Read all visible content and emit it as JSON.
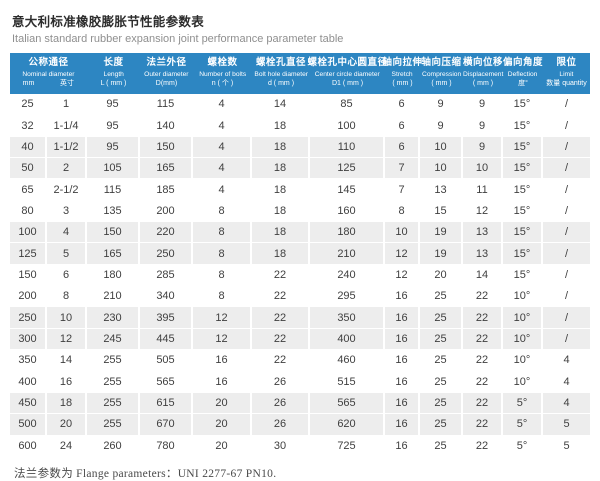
{
  "header": {
    "title": "意大利标准橡胶膨胀节性能参数表",
    "subtitle": "Italian standard rubber expansion joint performance parameter table"
  },
  "colors": {
    "header_bg": "#2d86c2",
    "row_stripe": "#ededed",
    "header_text": "#ffffff",
    "body_text": "#3f3f3f"
  },
  "table": {
    "columns": [
      {
        "zh": "公称通径",
        "en": "Nominal diameter",
        "sub": [
          "mm",
          "英寸"
        ],
        "span": 2
      },
      {
        "zh": "长度",
        "en": "Length",
        "sub": [
          "L ( mm )"
        ],
        "span": 1
      },
      {
        "zh": "法兰外径",
        "en": "Outer diameter",
        "sub": [
          "D(mm)"
        ],
        "span": 1
      },
      {
        "zh": "螺栓数",
        "en": "Number of bolts",
        "sub": [
          "n ( 个 )"
        ],
        "span": 1
      },
      {
        "zh": "螺栓孔直径",
        "en": "Bolt hole diameter",
        "sub": [
          "d ( mm )"
        ],
        "span": 1
      },
      {
        "zh": "螺栓孔中心圆直径",
        "en": "Center circle diameter",
        "sub": [
          "D1 ( mm )"
        ],
        "span": 1
      },
      {
        "zh": "轴向拉伸",
        "en": "Stretch",
        "sub": [
          "( mm )"
        ],
        "span": 1
      },
      {
        "zh": "轴向压缩",
        "en": "Compression",
        "sub": [
          "( mm )"
        ],
        "span": 1
      },
      {
        "zh": "横向位移",
        "en": "Displacement",
        "sub": [
          "( mm )"
        ],
        "span": 1
      },
      {
        "zh": "偏向角度",
        "en": "Deflection",
        "sub": [
          "度°"
        ],
        "span": 1
      },
      {
        "zh": "限位",
        "en": "Limit",
        "sub": [
          "数量 quantity"
        ],
        "span": 1
      }
    ],
    "rows": [
      [
        "25",
        "1",
        "95",
        "115",
        "4",
        "14",
        "85",
        "6",
        "9",
        "9",
        "15°",
        "/"
      ],
      [
        "32",
        "1-1/4",
        "95",
        "140",
        "4",
        "18",
        "100",
        "6",
        "9",
        "9",
        "15°",
        "/"
      ],
      [
        "40",
        "1-1/2",
        "95",
        "150",
        "4",
        "18",
        "110",
        "6",
        "10",
        "9",
        "15°",
        "/"
      ],
      [
        "50",
        "2",
        "105",
        "165",
        "4",
        "18",
        "125",
        "7",
        "10",
        "10",
        "15°",
        "/"
      ],
      [
        "65",
        "2-1/2",
        "115",
        "185",
        "4",
        "18",
        "145",
        "7",
        "13",
        "11",
        "15°",
        "/"
      ],
      [
        "80",
        "3",
        "135",
        "200",
        "8",
        "18",
        "160",
        "8",
        "15",
        "12",
        "15°",
        "/"
      ],
      [
        "100",
        "4",
        "150",
        "220",
        "8",
        "18",
        "180",
        "10",
        "19",
        "13",
        "15°",
        "/"
      ],
      [
        "125",
        "5",
        "165",
        "250",
        "8",
        "18",
        "210",
        "12",
        "19",
        "13",
        "15°",
        "/"
      ],
      [
        "150",
        "6",
        "180",
        "285",
        "8",
        "22",
        "240",
        "12",
        "20",
        "14",
        "15°",
        "/"
      ],
      [
        "200",
        "8",
        "210",
        "340",
        "8",
        "22",
        "295",
        "16",
        "25",
        "22",
        "10°",
        "/"
      ],
      [
        "250",
        "10",
        "230",
        "395",
        "12",
        "22",
        "350",
        "16",
        "25",
        "22",
        "10°",
        "/"
      ],
      [
        "300",
        "12",
        "245",
        "445",
        "12",
        "22",
        "400",
        "16",
        "25",
        "22",
        "10°",
        "/"
      ],
      [
        "350",
        "14",
        "255",
        "505",
        "16",
        "22",
        "460",
        "16",
        "25",
        "22",
        "10°",
        "4"
      ],
      [
        "400",
        "16",
        "255",
        "565",
        "16",
        "26",
        "515",
        "16",
        "25",
        "22",
        "10°",
        "4"
      ],
      [
        "450",
        "18",
        "255",
        "615",
        "20",
        "26",
        "565",
        "16",
        "25",
        "22",
        "5°",
        "4"
      ],
      [
        "500",
        "20",
        "255",
        "670",
        "20",
        "26",
        "620",
        "16",
        "25",
        "22",
        "5°",
        "5"
      ],
      [
        "600",
        "24",
        "260",
        "780",
        "20",
        "30",
        "725",
        "16",
        "25",
        "22",
        "5°",
        "5"
      ]
    ]
  },
  "footer": {
    "note": "法兰参数为 Flange parameters：UNI 2277-67 PN10."
  }
}
